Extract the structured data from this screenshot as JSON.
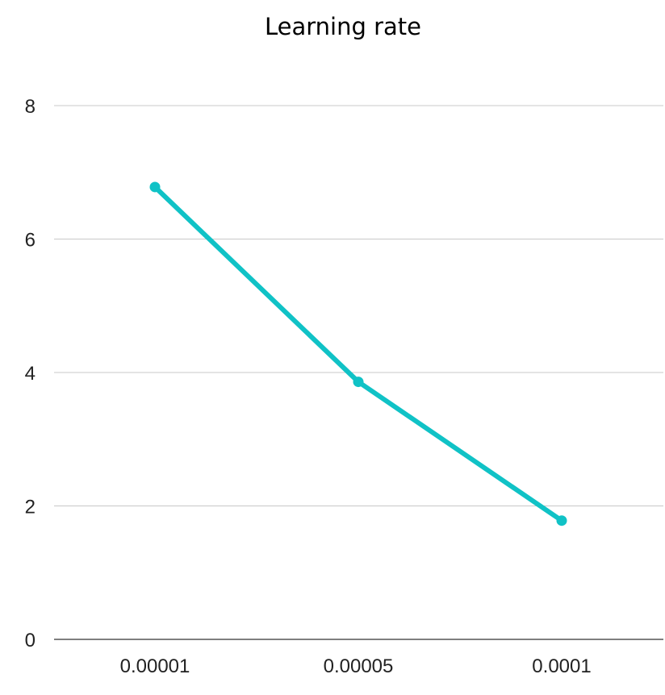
{
  "chart_data": {
    "type": "line",
    "title": "Learning rate",
    "xlabel": "",
    "ylabel": "",
    "categories": [
      "0.00001",
      "0.00005",
      "0.0001"
    ],
    "series": [
      {
        "values": [
          6.78,
          3.86,
          1.78
        ],
        "color": "#10c2c6"
      }
    ],
    "ylim": [
      0,
      8
    ],
    "yticks": [
      "0",
      "2",
      "4",
      "6",
      "8"
    ],
    "grid": true,
    "legend": "none"
  }
}
